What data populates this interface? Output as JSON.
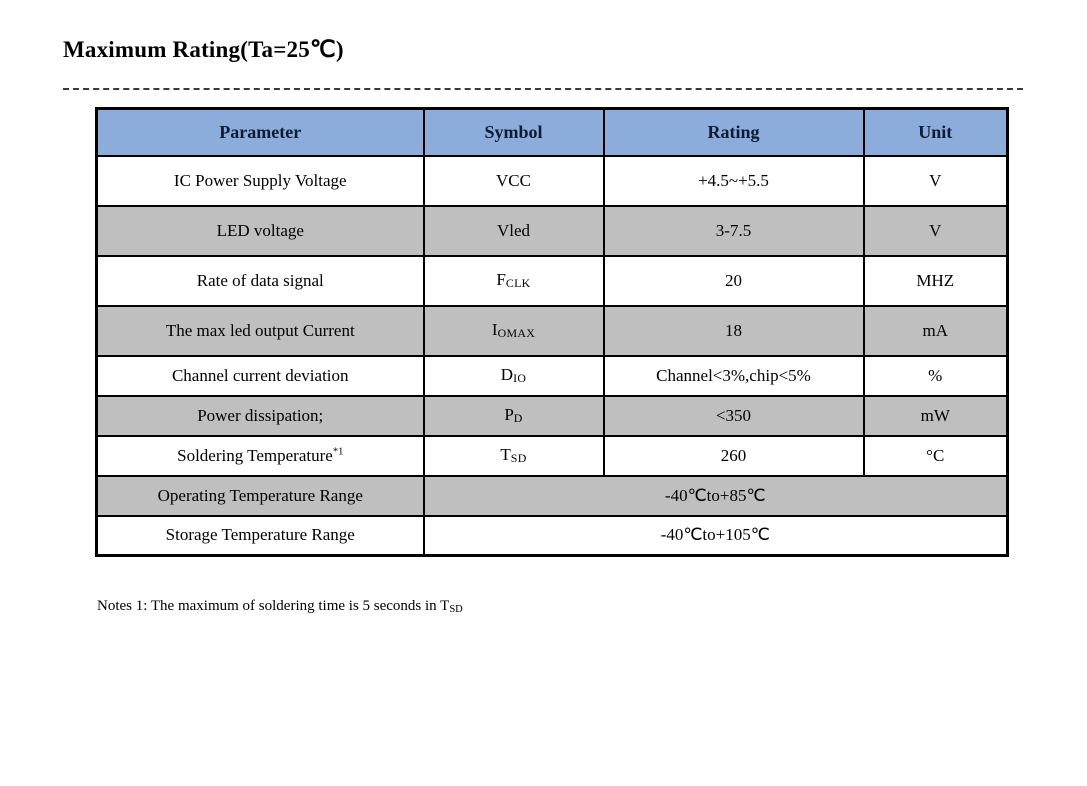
{
  "title": "Maximum Rating(Ta=25℃)",
  "colors": {
    "header_bg": "#8cacdc",
    "shaded_bg": "#bfbfbf",
    "border": "#000000",
    "header_text": "#0d1b33"
  },
  "table": {
    "headers": [
      "Parameter",
      "Symbol",
      "Rating",
      "Unit"
    ],
    "rows": [
      {
        "parameter": "IC Power Supply Voltage",
        "symbol": "VCC",
        "symbol_sub": "",
        "rating": "+4.5~+5.5",
        "unit": "V",
        "shaded": false,
        "merged": false
      },
      {
        "parameter": "LED voltage",
        "symbol": "Vled",
        "symbol_sub": "",
        "rating": "3-7.5",
        "unit": "V",
        "shaded": true,
        "merged": false
      },
      {
        "parameter": "Rate of data signal",
        "symbol": "F",
        "symbol_sub": "CLK",
        "rating": "20",
        "unit": "MHZ",
        "shaded": false,
        "merged": false
      },
      {
        "parameter": "The max led output Current",
        "symbol": "I",
        "symbol_sub": "OMAX",
        "rating": "18",
        "unit": "mA",
        "shaded": true,
        "merged": false
      },
      {
        "parameter": "Channel current deviation",
        "symbol": "D",
        "symbol_sub": "IO",
        "rating": "Channel<3%,chip<5%",
        "unit": "%",
        "shaded": false,
        "merged": false
      },
      {
        "parameter": "Power dissipation;",
        "symbol": "P",
        "symbol_sub": "D",
        "rating": "<350",
        "unit": "mW",
        "shaded": true,
        "merged": false
      },
      {
        "parameter": "Soldering Temperature",
        "parameter_sup": "*1",
        "symbol": "T",
        "symbol_sub": "SD",
        "rating": "260",
        "unit": "°C",
        "shaded": false,
        "merged": false
      },
      {
        "parameter": "Operating Temperature Range",
        "rating": "-40℃to+85℃",
        "shaded": true,
        "merged": true
      },
      {
        "parameter": "Storage Temperature Range",
        "rating": "-40℃to+105℃",
        "shaded": false,
        "merged": true
      }
    ]
  },
  "note": {
    "text": "Notes 1: The maximum of soldering time is 5 seconds in T",
    "sub": "SD"
  }
}
